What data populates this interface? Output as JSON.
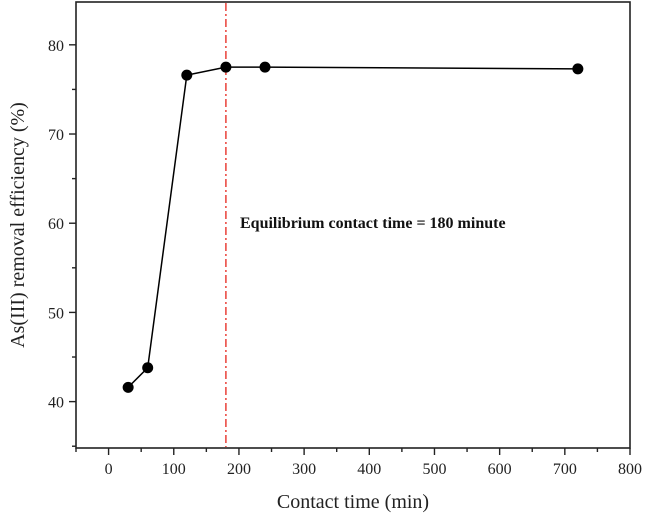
{
  "chart_data": {
    "type": "line",
    "title": "",
    "xlabel": "Contact time (min)",
    "ylabel": "As(III) removal efficiency (%)",
    "x": [
      30,
      60,
      120,
      180,
      240,
      720
    ],
    "series": [
      {
        "name": "As(III) removal efficiency",
        "values": [
          41.6,
          43.8,
          76.6,
          77.5,
          77.5,
          77.3
        ],
        "color": "#000000",
        "marker": "circle"
      }
    ],
    "xlim": [
      -50,
      800
    ],
    "ylim": [
      34.8,
      84.8
    ],
    "xticks": [
      0,
      100,
      200,
      300,
      400,
      500,
      600,
      700,
      800
    ],
    "yticks": [
      40,
      50,
      60,
      70,
      80
    ],
    "grid": false,
    "legend": null,
    "reference_line": {
      "axis": "x",
      "value": 180,
      "style": "dash-dot",
      "color": "#e8332a"
    },
    "annotations": [
      {
        "text": "Equilibrium contact time = 180 minute",
        "x": 200,
        "y": 62.3
      }
    ]
  }
}
